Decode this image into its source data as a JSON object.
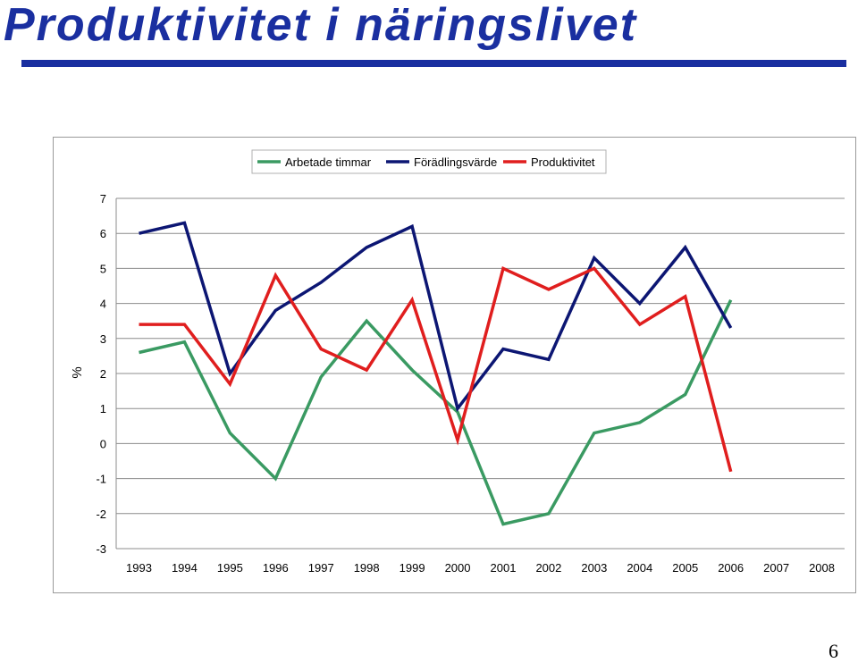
{
  "page": {
    "title": "Produktivitet i näringslivet",
    "page_number": "6"
  },
  "chart_data": {
    "type": "line",
    "title": "",
    "xlabel": "",
    "ylabel": "%",
    "ylim": [
      -3,
      7
    ],
    "yticks": [
      "7",
      "6",
      "5",
      "4",
      "3",
      "2",
      "1",
      "0",
      "-1",
      "-2",
      "-3"
    ],
    "grid": true,
    "legend_position": "top",
    "categories": [
      "1993",
      "1994",
      "1995",
      "1996",
      "1997",
      "1998",
      "1999",
      "2000",
      "2001",
      "2002",
      "2003",
      "2004",
      "2005",
      "2006",
      "2007",
      "2008"
    ],
    "series": [
      {
        "name": "Arbetade timmar",
        "color": "#3a9a62",
        "values": [
          2.6,
          2.9,
          0.3,
          -1.0,
          1.9,
          3.5,
          2.1,
          0.9,
          -2.3,
          -2.0,
          0.3,
          0.6,
          1.4,
          4.1,
          null,
          null
        ]
      },
      {
        "name": "Förädlingsvärde",
        "color": "#0c1673",
        "values": [
          6.0,
          6.3,
          2.0,
          3.8,
          4.6,
          5.6,
          6.2,
          1.0,
          2.7,
          2.4,
          5.3,
          4.0,
          5.6,
          3.3,
          null,
          null
        ]
      },
      {
        "name": "Produktivitet",
        "color": "#e01e1e",
        "values": [
          3.4,
          3.4,
          1.7,
          4.8,
          2.7,
          2.1,
          4.1,
          0.1,
          5.0,
          4.4,
          5.0,
          3.4,
          4.2,
          -0.8,
          null,
          null
        ]
      }
    ]
  }
}
